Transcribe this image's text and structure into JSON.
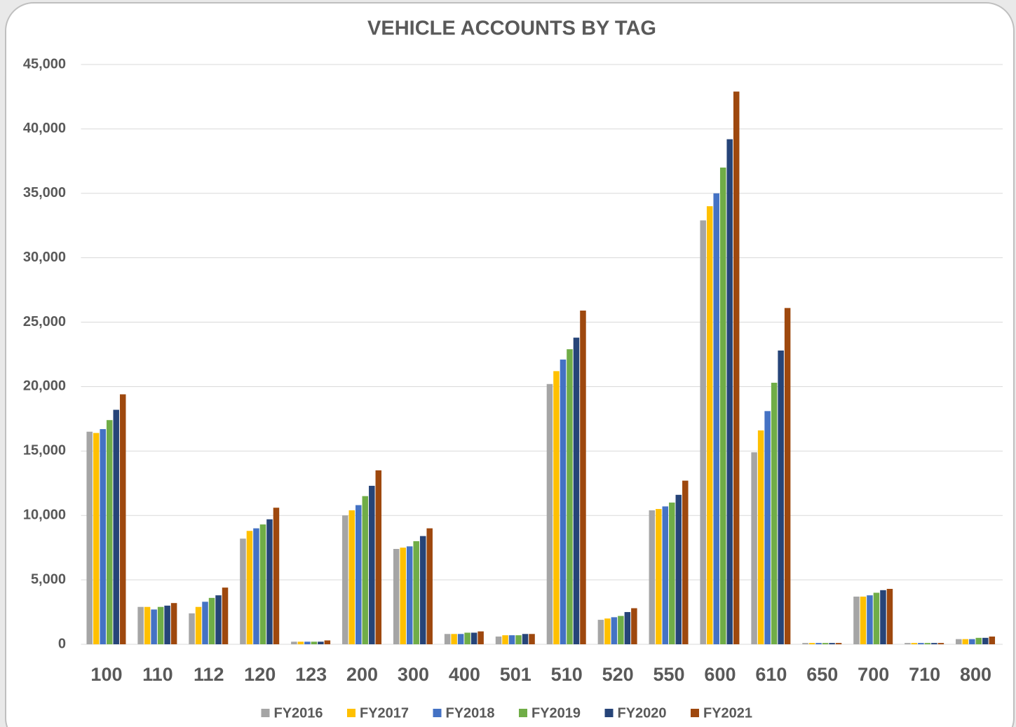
{
  "chart_data": {
    "type": "bar",
    "title": "VEHICLE ACCOUNTS BY TAG",
    "categories": [
      "100",
      "110",
      "112",
      "120",
      "123",
      "200",
      "300",
      "400",
      "501",
      "510",
      "520",
      "550",
      "600",
      "610",
      "650",
      "700",
      "710",
      "800"
    ],
    "series": [
      {
        "name": "FY2016",
        "color": "#a5a5a5",
        "values": [
          16500,
          2900,
          2400,
          8200,
          200,
          10000,
          7400,
          800,
          600,
          20200,
          1900,
          10400,
          32900,
          14900,
          100,
          3700,
          100,
          400
        ]
      },
      {
        "name": "FY2017",
        "color": "#ffc000",
        "values": [
          16400,
          2900,
          2900,
          8800,
          200,
          10400,
          7500,
          800,
          700,
          21200,
          2000,
          10500,
          34000,
          16600,
          100,
          3700,
          100,
          400
        ]
      },
      {
        "name": "FY2018",
        "color": "#4472c4",
        "values": [
          16700,
          2700,
          3300,
          9000,
          200,
          10800,
          7600,
          800,
          700,
          22100,
          2100,
          10700,
          35000,
          18100,
          100,
          3800,
          100,
          400
        ]
      },
      {
        "name": "FY2019",
        "color": "#70ad47",
        "values": [
          17400,
          2900,
          3600,
          9300,
          200,
          11500,
          8000,
          900,
          700,
          22900,
          2200,
          11000,
          37000,
          20300,
          100,
          4000,
          100,
          500
        ]
      },
      {
        "name": "FY2020",
        "color": "#264478",
        "values": [
          18200,
          3000,
          3800,
          9700,
          200,
          12300,
          8400,
          900,
          800,
          23800,
          2500,
          11600,
          39200,
          22800,
          100,
          4200,
          100,
          500
        ]
      },
      {
        "name": "FY2021",
        "color": "#9e480e",
        "values": [
          19400,
          3200,
          4400,
          10600,
          300,
          13500,
          9000,
          1000,
          800,
          25900,
          2800,
          12700,
          42900,
          26100,
          100,
          4300,
          100,
          600
        ]
      }
    ],
    "ylim": [
      0,
      45000
    ],
    "yticks": [
      0,
      {
        "value": 5000,
        "label": "5,000"
      },
      {
        "value": 10000,
        "label": "10,000"
      },
      {
        "value": 15000,
        "label": "15,000"
      },
      {
        "value": 20000,
        "label": "20,000"
      },
      {
        "value": 25000,
        "label": "25,000"
      },
      {
        "value": 30000,
        "label": "30,000"
      },
      {
        "value": 35000,
        "label": "35,000"
      },
      {
        "value": 40000,
        "label": "40,000"
      },
      {
        "value": 45000,
        "label": "45,000"
      }
    ],
    "grid": true,
    "legend": "bottom"
  }
}
